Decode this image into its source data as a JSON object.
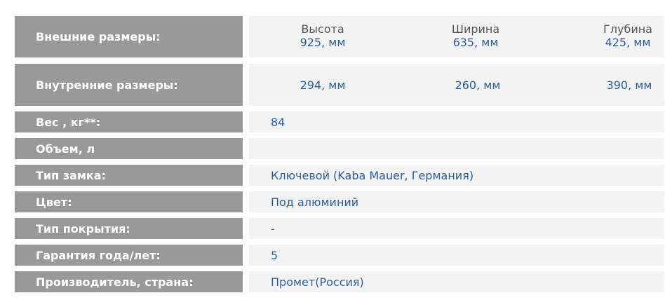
{
  "external": {
    "label": "Внешние размеры:",
    "cols": [
      {
        "h": "Высота",
        "v": "925, мм"
      },
      {
        "h": "Ширина",
        "v": "635, мм"
      },
      {
        "h": "Глубина",
        "v": "425, мм"
      }
    ]
  },
  "internal": {
    "label": "Внутренние размеры:",
    "cols": [
      {
        "v": "294, мм"
      },
      {
        "v": "260, мм"
      },
      {
        "v": "390, мм"
      }
    ]
  },
  "rows": [
    {
      "label": "Вес , кг**:",
      "value": "84"
    },
    {
      "label": "Объем, л",
      "value": ""
    },
    {
      "label": "Тип замка:",
      "value": "Ключевой (Kaba Mauer, Германия)"
    },
    {
      "label": "Цвет:",
      "value": "Под алюминий"
    },
    {
      "label": "Тип покрытия:",
      "value": "-"
    },
    {
      "label": "Гарантия года/лет:",
      "value": "5"
    },
    {
      "label": "Производитель, страна:",
      "value": "Промет(Россия)"
    }
  ]
}
